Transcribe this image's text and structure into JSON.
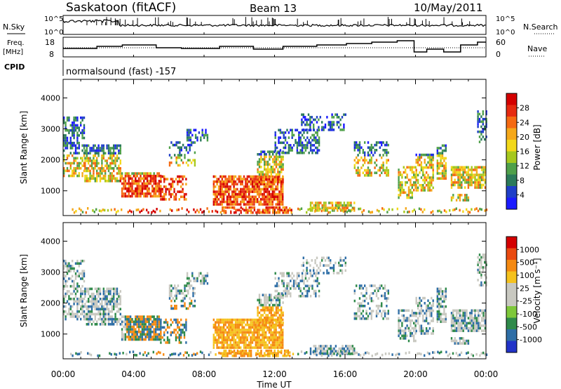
{
  "header": {
    "station": "Saskatoon (fitACF)",
    "beam": "Beam 13",
    "date": "10/May/2011"
  },
  "panels": {
    "nsky": {
      "left_label": "N.Sky",
      "right_label": "N.Search",
      "ticks": [
        "10^5",
        "10^0"
      ]
    },
    "freq": {
      "left_label_1": "Freq.",
      "left_label_2": "[MHz]",
      "left_ticks": [
        "18",
        "8"
      ],
      "right_label": "Nave",
      "right_ticks": [
        "60",
        "0"
      ]
    },
    "cpid": {
      "label": "CPID",
      "text": "normalsound (fast) -157"
    }
  },
  "chart_data": [
    {
      "type": "heatmap",
      "title": "",
      "xlabel": "Time UT",
      "ylabel": "Slant Range [km]",
      "x_ticks": [
        "00:00",
        "04:00",
        "08:00",
        "12:00",
        "16:00",
        "20:00",
        "00:00"
      ],
      "y_ticks": [
        "1000",
        "2000",
        "3000",
        "4000"
      ],
      "xlim": [
        0,
        24
      ],
      "ylim": [
        200,
        4600
      ],
      "colorbar": {
        "label": "Power [dB]",
        "ticks": [
          "4",
          "8",
          "12",
          "16",
          "20",
          "24",
          "28"
        ],
        "colors": [
          "#1b1bff",
          "#1f3fc8",
          "#2b7a5a",
          "#4fa04a",
          "#a6c81e",
          "#f2d81a",
          "#f5a81a",
          "#f56a12",
          "#e62a10",
          "#d40000"
        ]
      }
    },
    {
      "type": "heatmap",
      "title": "",
      "xlabel": "Time UT",
      "ylabel": "Slant Range [km]",
      "x_ticks": [
        "00:00",
        "04:00",
        "08:00",
        "12:00",
        "16:00",
        "20:00",
        "00:00"
      ],
      "y_ticks": [
        "1000",
        "2000",
        "3000",
        "4000"
      ],
      "xlim": [
        0,
        24
      ],
      "ylim": [
        200,
        4600
      ],
      "colorbar": {
        "label": "Velocity [m s⁻¹]",
        "ticks": [
          "1000",
          "500",
          "100",
          "25",
          "-25",
          "-100",
          "-500",
          "-1000"
        ],
        "colors": [
          "#2133c8",
          "#2e6ea6",
          "#2f8a4a",
          "#7ec83a",
          "#c8c8c0",
          "#c8c8c0",
          "#f5c21e",
          "#f58a12",
          "#ea4a10",
          "#d40000"
        ]
      }
    }
  ]
}
